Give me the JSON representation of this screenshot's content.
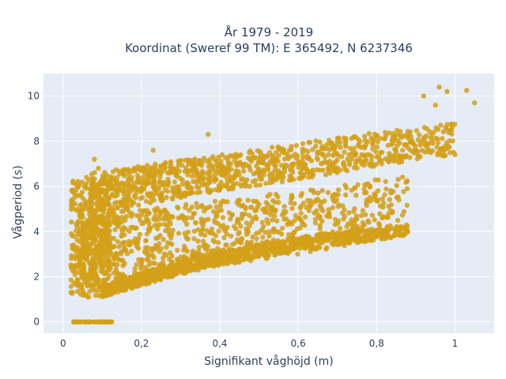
{
  "chart_data": {
    "type": "scatter",
    "title_lines": [
      "År 1979 - 2019",
      "Koordinat (Sweref 99 TM): E 365492, N 6237346"
    ],
    "xlabel": "Signifikant våghöjd (m)",
    "ylabel": "Vågperiod (s)",
    "xlim": [
      -0.05,
      1.1
    ],
    "ylim": [
      -0.5,
      11
    ],
    "x_ticks": [
      0,
      0.2,
      0.4,
      0.6,
      0.8,
      1
    ],
    "x_tick_labels": [
      "0",
      "0,2",
      "0,4",
      "0,6",
      "0,8",
      "1"
    ],
    "y_ticks": [
      0,
      2,
      4,
      6,
      8,
      10
    ],
    "y_tick_labels": [
      "0",
      "2",
      "4",
      "6",
      "8",
      "10"
    ],
    "grid": true,
    "legend": "none",
    "marker_color": "#d4a017",
    "plot_bg": "#e5ecf6",
    "bands": [
      {
        "region": "upper_band",
        "x": [
          0.07,
          0.2,
          0.4,
          0.6,
          0.8,
          1.0
        ],
        "y_low": [
          4.3,
          5.2,
          5.8,
          6.3,
          6.9,
          7.4
        ],
        "y_high": [
          6.6,
          6.9,
          7.4,
          7.9,
          8.4,
          8.8
        ]
      },
      {
        "region": "middle_band",
        "x": [
          0.05,
          0.2,
          0.4,
          0.6,
          0.8,
          0.88
        ],
        "y_low": [
          1.5,
          2.0,
          2.5,
          3.0,
          3.6,
          3.9
        ],
        "y_high": [
          4.5,
          5.0,
          5.4,
          5.8,
          6.3,
          6.6
        ]
      },
      {
        "region": "lower_band",
        "x": [
          0.1,
          0.3,
          0.5,
          0.7,
          0.88
        ],
        "y_low": [
          1.1,
          2.1,
          2.9,
          3.4,
          3.8
        ],
        "y_high": [
          1.6,
          2.8,
          3.5,
          4.0,
          4.3
        ]
      },
      {
        "region": "zero_line",
        "x": [
          0.025,
          0.125
        ],
        "y_low": [
          0,
          0
        ],
        "y_high": [
          0,
          0
        ]
      }
    ],
    "outliers": [
      {
        "x": 0.23,
        "y": 7.6
      },
      {
        "x": 0.37,
        "y": 8.3
      },
      {
        "x": 0.08,
        "y": 7.2
      },
      {
        "x": 0.92,
        "y": 10.0
      },
      {
        "x": 0.96,
        "y": 10.4
      },
      {
        "x": 0.98,
        "y": 10.2
      },
      {
        "x": 1.03,
        "y": 10.25
      },
      {
        "x": 1.05,
        "y": 9.7
      },
      {
        "x": 0.95,
        "y": 9.6
      },
      {
        "x": 0.02,
        "y": 1.3
      },
      {
        "x": 0.03,
        "y": 2.9
      },
      {
        "x": 0.06,
        "y": 6.4
      },
      {
        "x": 0.09,
        "y": 6.8
      }
    ]
  }
}
